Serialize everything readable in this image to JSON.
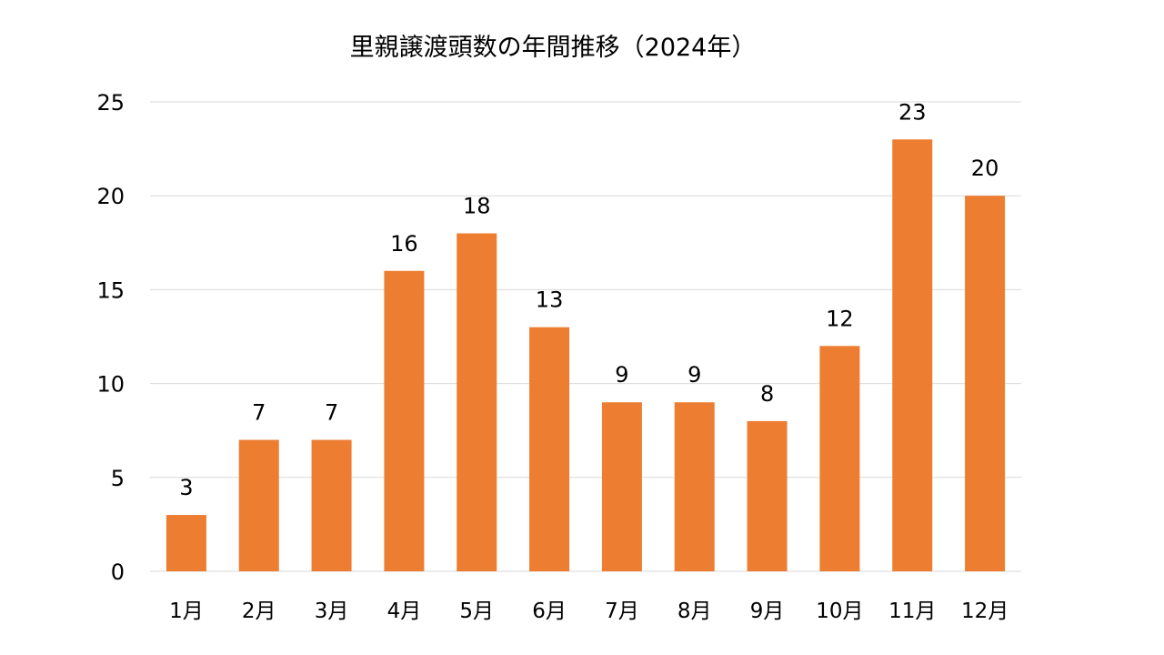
{
  "chart_data": {
    "type": "bar",
    "title": "里親譲渡頭数の年間推移（2024年）",
    "xlabel": "",
    "ylabel": "",
    "categories": [
      "1月",
      "2月",
      "3月",
      "4月",
      "5月",
      "6月",
      "7月",
      "8月",
      "9月",
      "10月",
      "11月",
      "12月"
    ],
    "values": [
      3,
      7,
      7,
      16,
      18,
      13,
      9,
      9,
      8,
      12,
      23,
      20
    ],
    "ylim": [
      0,
      25
    ],
    "yticks": [
      0,
      5,
      10,
      15,
      20,
      25
    ],
    "grid": true,
    "legend": "none",
    "data_labels": true,
    "bar_color": "#ed7d31",
    "grid_color": "#d9d9d9"
  }
}
